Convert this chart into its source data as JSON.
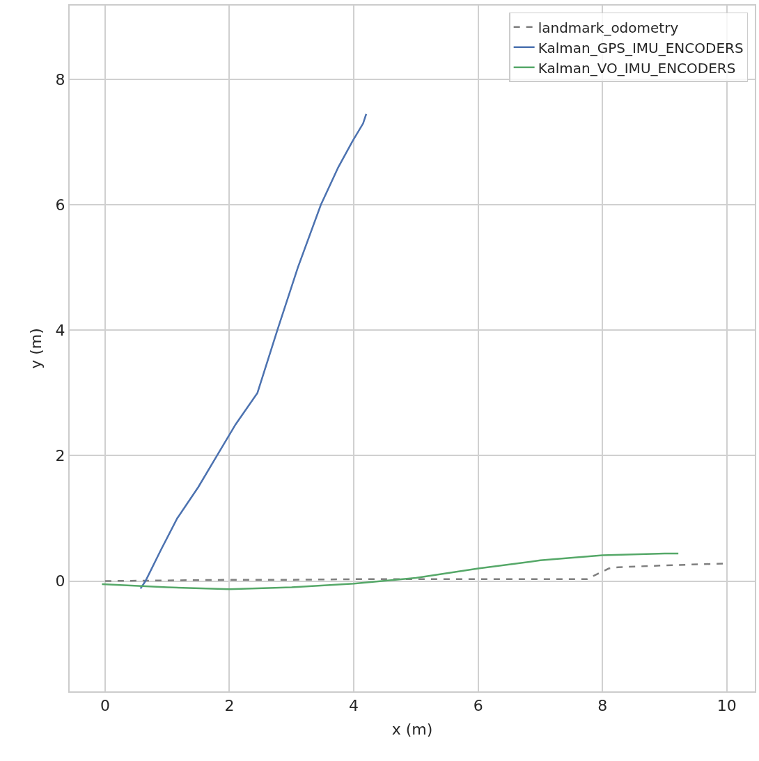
{
  "chart_data": {
    "type": "line",
    "xlabel": "x (m)",
    "ylabel": "y (m)",
    "xlim": [
      -0.57,
      10.45
    ],
    "ylim": [
      -1.76,
      9.18
    ],
    "xticks": [
      0,
      2,
      4,
      6,
      8,
      10
    ],
    "yticks": [
      0,
      2,
      4,
      6,
      8
    ],
    "grid": true,
    "legend": "top right",
    "series": [
      {
        "name": "landmark_odometry",
        "color": "#7f7f7f",
        "line_style": "dashed",
        "x": [
          0,
          1,
          2,
          3,
          4,
          5,
          6,
          7,
          7.75,
          8.1,
          8.25,
          9,
          10
        ],
        "values": [
          0,
          0.01,
          0.02,
          0.02,
          0.03,
          0.03,
          0.03,
          0.03,
          0.03,
          0.2,
          0.22,
          0.25,
          0.28
        ]
      },
      {
        "name": "Kalman_GPS_IMU_ENCODERS",
        "color": "#4c72b0",
        "line_style": "solid",
        "x": [
          0.57,
          0.65,
          0.9,
          1.16,
          1.5,
          1.8,
          2.1,
          2.45,
          2.77,
          3.1,
          3.47,
          3.75,
          3.97,
          4.15,
          4.2
        ],
        "values": [
          -0.12,
          0,
          0.5,
          1,
          1.5,
          2,
          2.5,
          3,
          4,
          5,
          6,
          6.6,
          7,
          7.3,
          7.45
        ]
      },
      {
        "name": "Kalman_VO_IMU_ENCODERS",
        "color": "#55a868",
        "line_style": "solid",
        "x": [
          -0.05,
          1,
          2,
          3,
          4,
          5,
          6,
          7,
          8,
          9,
          9.22
        ],
        "values": [
          -0.05,
          -0.1,
          -0.13,
          -0.1,
          -0.04,
          0.05,
          0.2,
          0.33,
          0.41,
          0.44,
          0.44
        ]
      }
    ]
  }
}
